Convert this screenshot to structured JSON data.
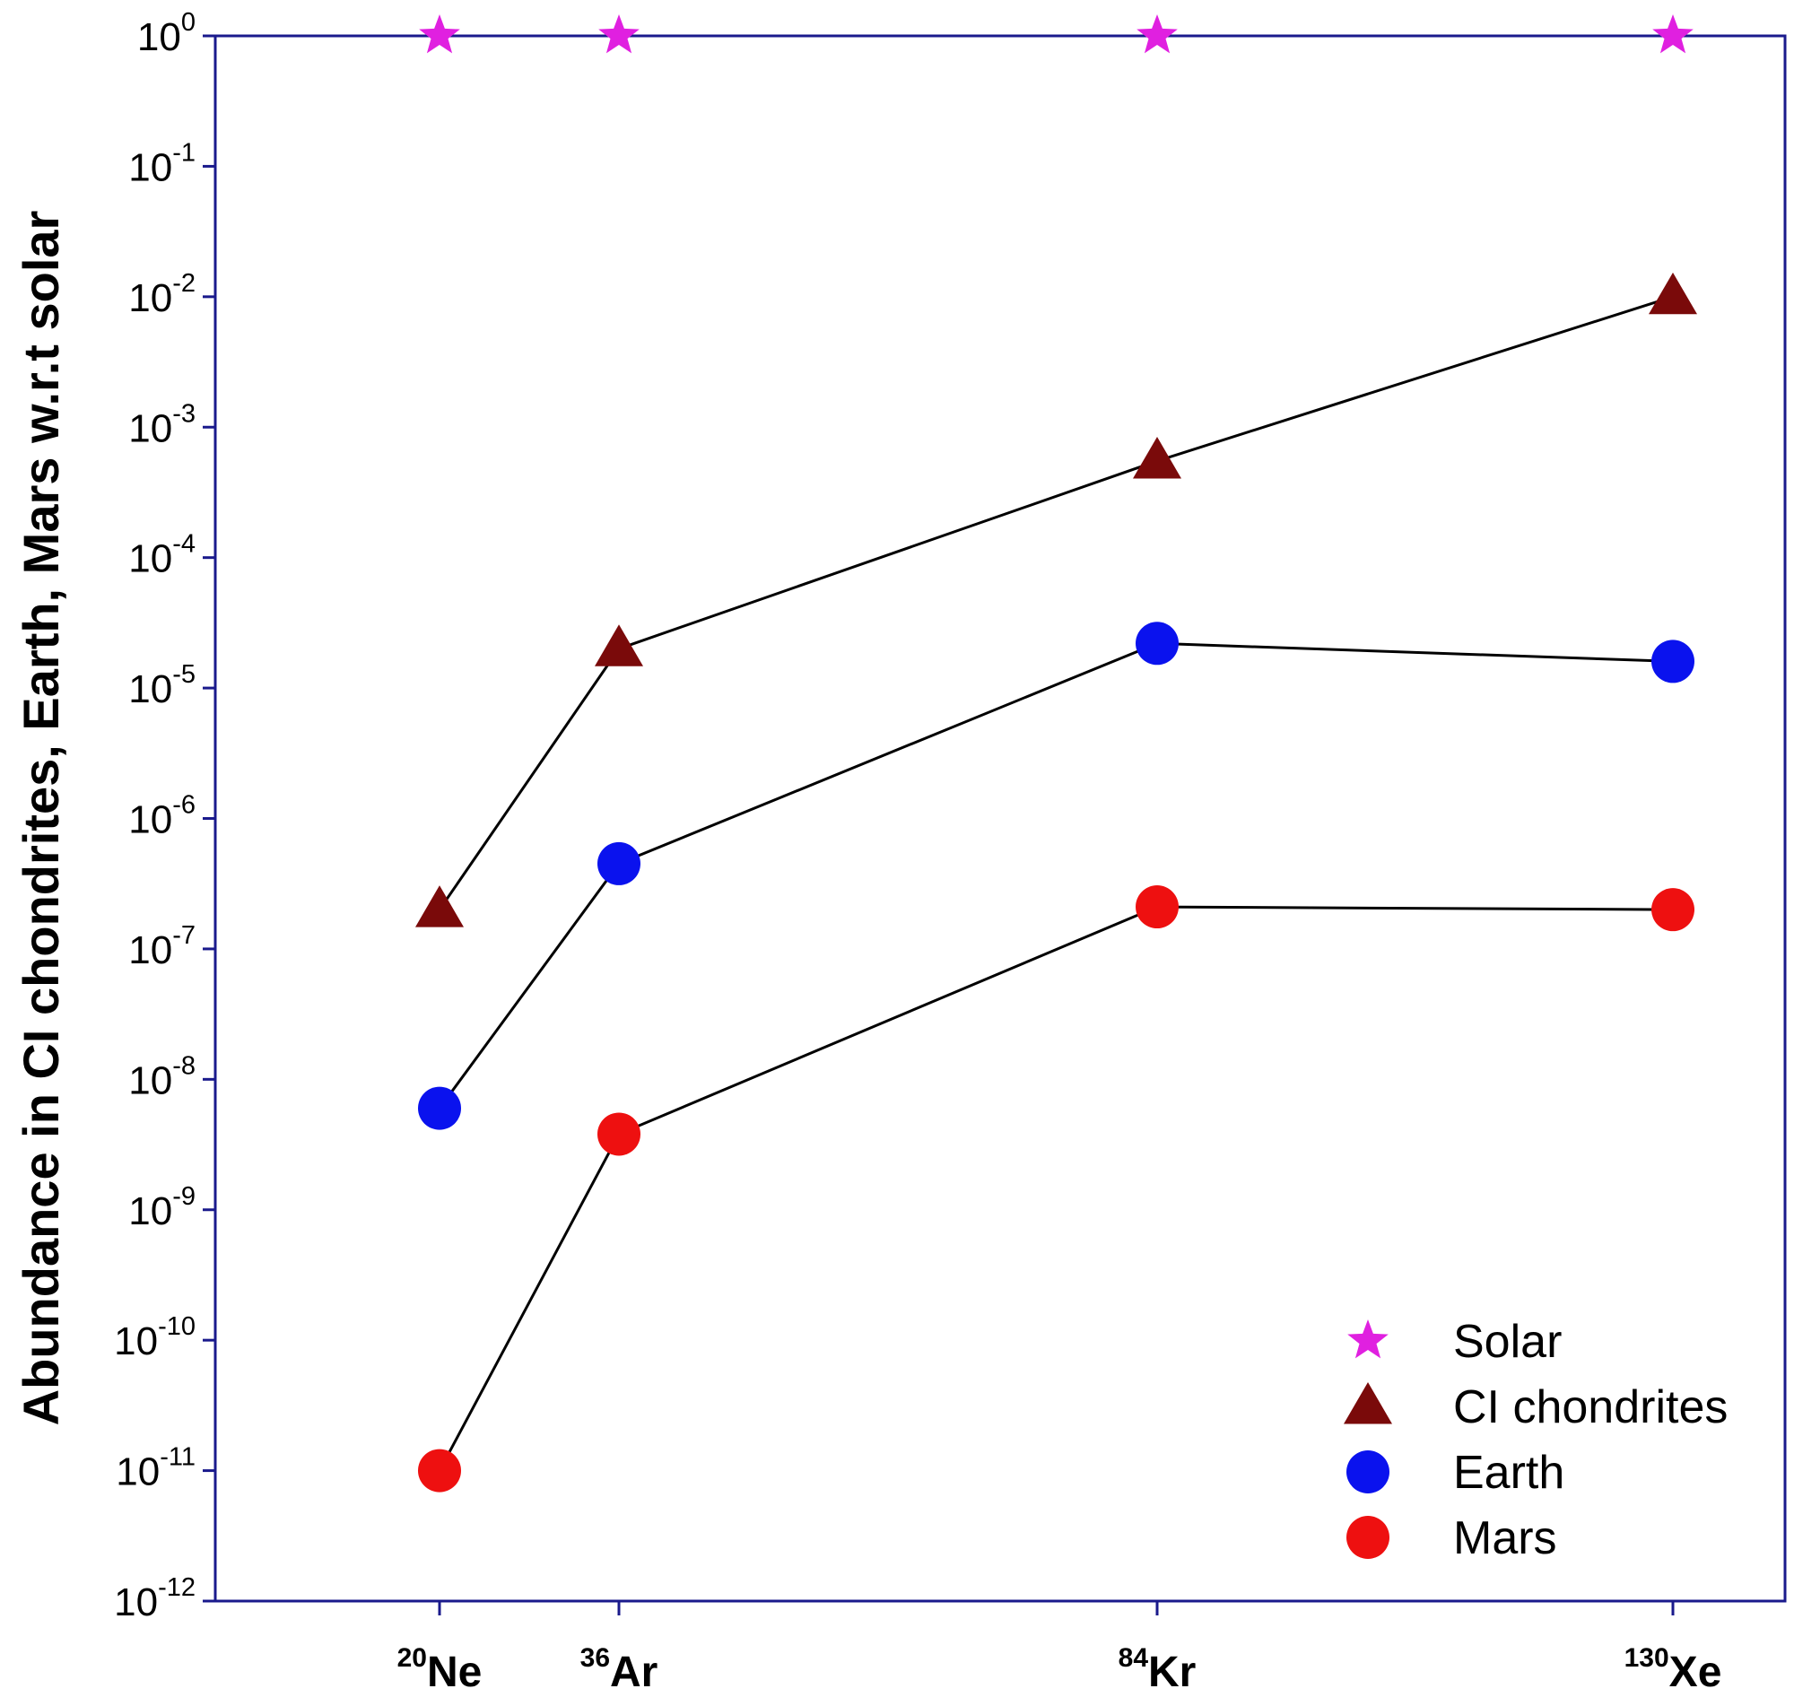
{
  "chart_data": {
    "type": "line",
    "title": "",
    "xlabel": "",
    "ylabel": "Abundance in CI chondrites, Earth, Mars w.r.t solar",
    "yscale": "log",
    "ylim": [
      1e-12,
      1
    ],
    "y_ticks": [
      {
        "value": 1,
        "base": "10",
        "exp": "0"
      },
      {
        "value": 0.1,
        "base": "10",
        "exp": "-1"
      },
      {
        "value": 0.01,
        "base": "10",
        "exp": "-2"
      },
      {
        "value": 0.001,
        "base": "10",
        "exp": "-3"
      },
      {
        "value": 0.0001,
        "base": "10",
        "exp": "-4"
      },
      {
        "value": 1e-05,
        "base": "10",
        "exp": "-5"
      },
      {
        "value": 1e-06,
        "base": "10",
        "exp": "-6"
      },
      {
        "value": 1e-07,
        "base": "10",
        "exp": "-7"
      },
      {
        "value": 1e-08,
        "base": "10",
        "exp": "-8"
      },
      {
        "value": 1e-09,
        "base": "10",
        "exp": "-9"
      },
      {
        "value": 1e-10,
        "base": "10",
        "exp": "-10"
      },
      {
        "value": 1e-11,
        "base": "10",
        "exp": "-11"
      },
      {
        "value": 1e-12,
        "base": "10",
        "exp": "-12"
      }
    ],
    "categories": [
      {
        "mass": "20",
        "element": "Ne",
        "x": 20
      },
      {
        "mass": "36",
        "element": "Ar",
        "x": 36
      },
      {
        "mass": "84",
        "element": "Kr",
        "x": 84
      },
      {
        "mass": "130",
        "element": "Xe",
        "x": 130
      }
    ],
    "xlim": [
      0,
      140
    ],
    "series": [
      {
        "name": "Solar",
        "marker": "star",
        "color": "#e020e0",
        "line": false,
        "values": [
          1,
          1,
          1,
          1
        ]
      },
      {
        "name": "CI chondrites",
        "marker": "triangle",
        "color": "#7a0a0a",
        "line": true,
        "values": [
          2e-07,
          2e-05,
          0.00055,
          0.01
        ]
      },
      {
        "name": "Earth",
        "marker": "circle",
        "color": "#0a12ee",
        "line": true,
        "values": [
          6e-09,
          4.5e-07,
          2.2e-05,
          1.6e-05
        ]
      },
      {
        "name": "Mars",
        "marker": "circle",
        "color": "#ee1010",
        "line": true,
        "values": [
          1e-11,
          3.8e-09,
          2.1e-07,
          2e-07
        ]
      }
    ],
    "legend_position": "bottom-right",
    "frame_color": "#1a1a8c",
    "line_color": "#000000"
  }
}
